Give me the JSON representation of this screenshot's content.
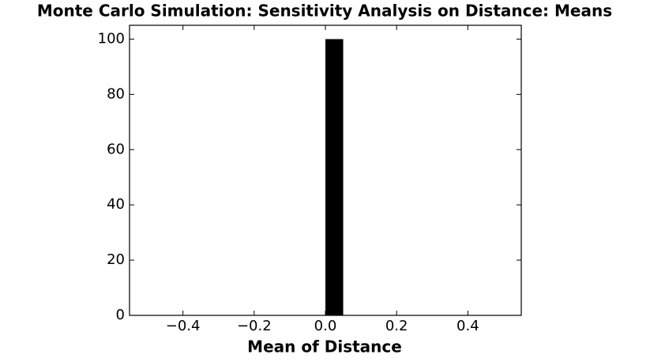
{
  "chart_data": {
    "type": "histogram",
    "title": "Monte Carlo Simulation: Sensitivity Analysis on Distance: Means",
    "xlabel": "Mean of Distance",
    "bins": [
      -0.5,
      -0.45,
      -0.4,
      -0.35,
      -0.3,
      -0.25,
      -0.2,
      -0.15,
      -0.1,
      -0.05,
      0,
      0.05,
      0.1,
      0.15,
      0.2,
      0.25,
      0.3,
      0.35,
      0.4,
      0.45,
      0.5
    ],
    "values": [
      0,
      0,
      0,
      0,
      0,
      0,
      0,
      0,
      0,
      0,
      100,
      0,
      0,
      0,
      0,
      0,
      0,
      0,
      0,
      0
    ],
    "color": "#000000",
    "xlim": [
      -0.55,
      0.55
    ],
    "xticks": [
      {
        "value": -0.4,
        "label": "−0.4"
      },
      {
        "value": -0.2,
        "label": "−0.2"
      },
      {
        "value": 0,
        "label": "0.0"
      },
      0.2,
      0.4
    ],
    "ylim": [
      0,
      105
    ],
    "yticks": [
      0,
      20,
      40,
      60,
      80,
      100
    ]
  }
}
